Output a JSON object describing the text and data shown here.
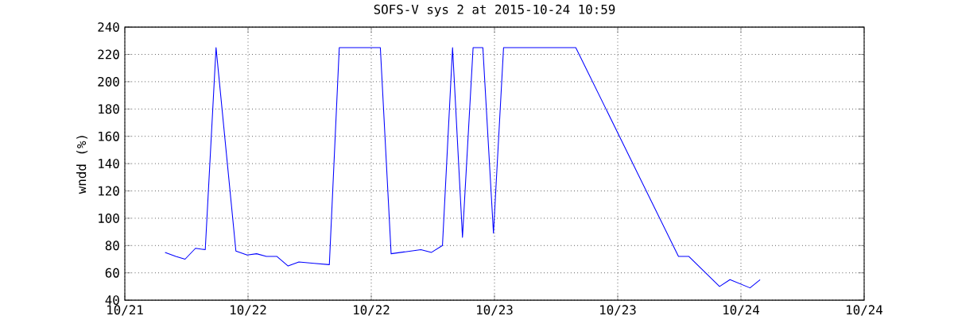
{
  "chart_data": {
    "type": "line",
    "title": "SOFS-V sys 2 at 2015-10-24 10:59",
    "ylabel": "wndd (%)",
    "color": "#0000ff",
    "grid": true,
    "x": [
      "2015-10-21T15:55",
      "2015-10-21T16:58",
      "2015-10-21T17:52",
      "2015-10-21T18:53",
      "2015-10-21T19:50",
      "2015-10-21T20:53",
      "2015-10-21T22:49",
      "2015-10-21T23:55",
      "2015-10-22T00:50",
      "2015-10-22T01:47",
      "2015-10-22T02:49",
      "2015-10-22T03:54",
      "2015-10-22T04:57",
      "2015-10-22T06:26",
      "2015-10-22T07:55",
      "2015-10-22T08:53",
      "2015-10-22T12:53",
      "2015-10-22T13:56",
      "2015-10-22T16:50",
      "2015-10-22T17:52",
      "2015-10-22T18:56",
      "2015-10-22T19:55",
      "2015-10-22T20:53",
      "2015-10-22T21:55",
      "2015-10-22T22:52",
      "2015-10-22T23:54",
      "2015-10-23T00:53",
      "2015-10-23T07:55",
      "2015-10-23T17:55",
      "2015-10-23T18:56",
      "2015-10-23T21:55",
      "2015-10-23T22:56",
      "2015-10-24T00:53",
      "2015-10-24T01:52"
    ],
    "values": [
      75,
      72,
      70,
      78,
      77,
      225,
      76,
      73,
      74,
      72,
      72,
      65,
      68,
      67,
      66,
      225,
      225,
      74,
      77,
      75,
      80,
      225,
      86,
      225,
      225,
      89,
      225,
      225,
      72,
      72,
      50,
      55,
      49,
      55
    ],
    "xlim": [
      "2015-10-21T12:00",
      "2015-10-24T12:00"
    ],
    "ylim": [
      40,
      240
    ],
    "xticks": [
      {
        "value": "2015-10-21T12:00",
        "label": "10/21"
      },
      {
        "value": "2015-10-22T00:00",
        "label": "10/22"
      },
      {
        "value": "2015-10-22T12:00",
        "label": "10/22"
      },
      {
        "value": "2015-10-23T00:00",
        "label": "10/23"
      },
      {
        "value": "2015-10-23T12:00",
        "label": "10/23"
      },
      {
        "value": "2015-10-24T00:00",
        "label": "10/24"
      },
      {
        "value": "2015-10-24T12:00",
        "label": "10/24"
      }
    ],
    "yticks": [
      40,
      60,
      80,
      100,
      120,
      140,
      160,
      180,
      200,
      220,
      240
    ]
  }
}
